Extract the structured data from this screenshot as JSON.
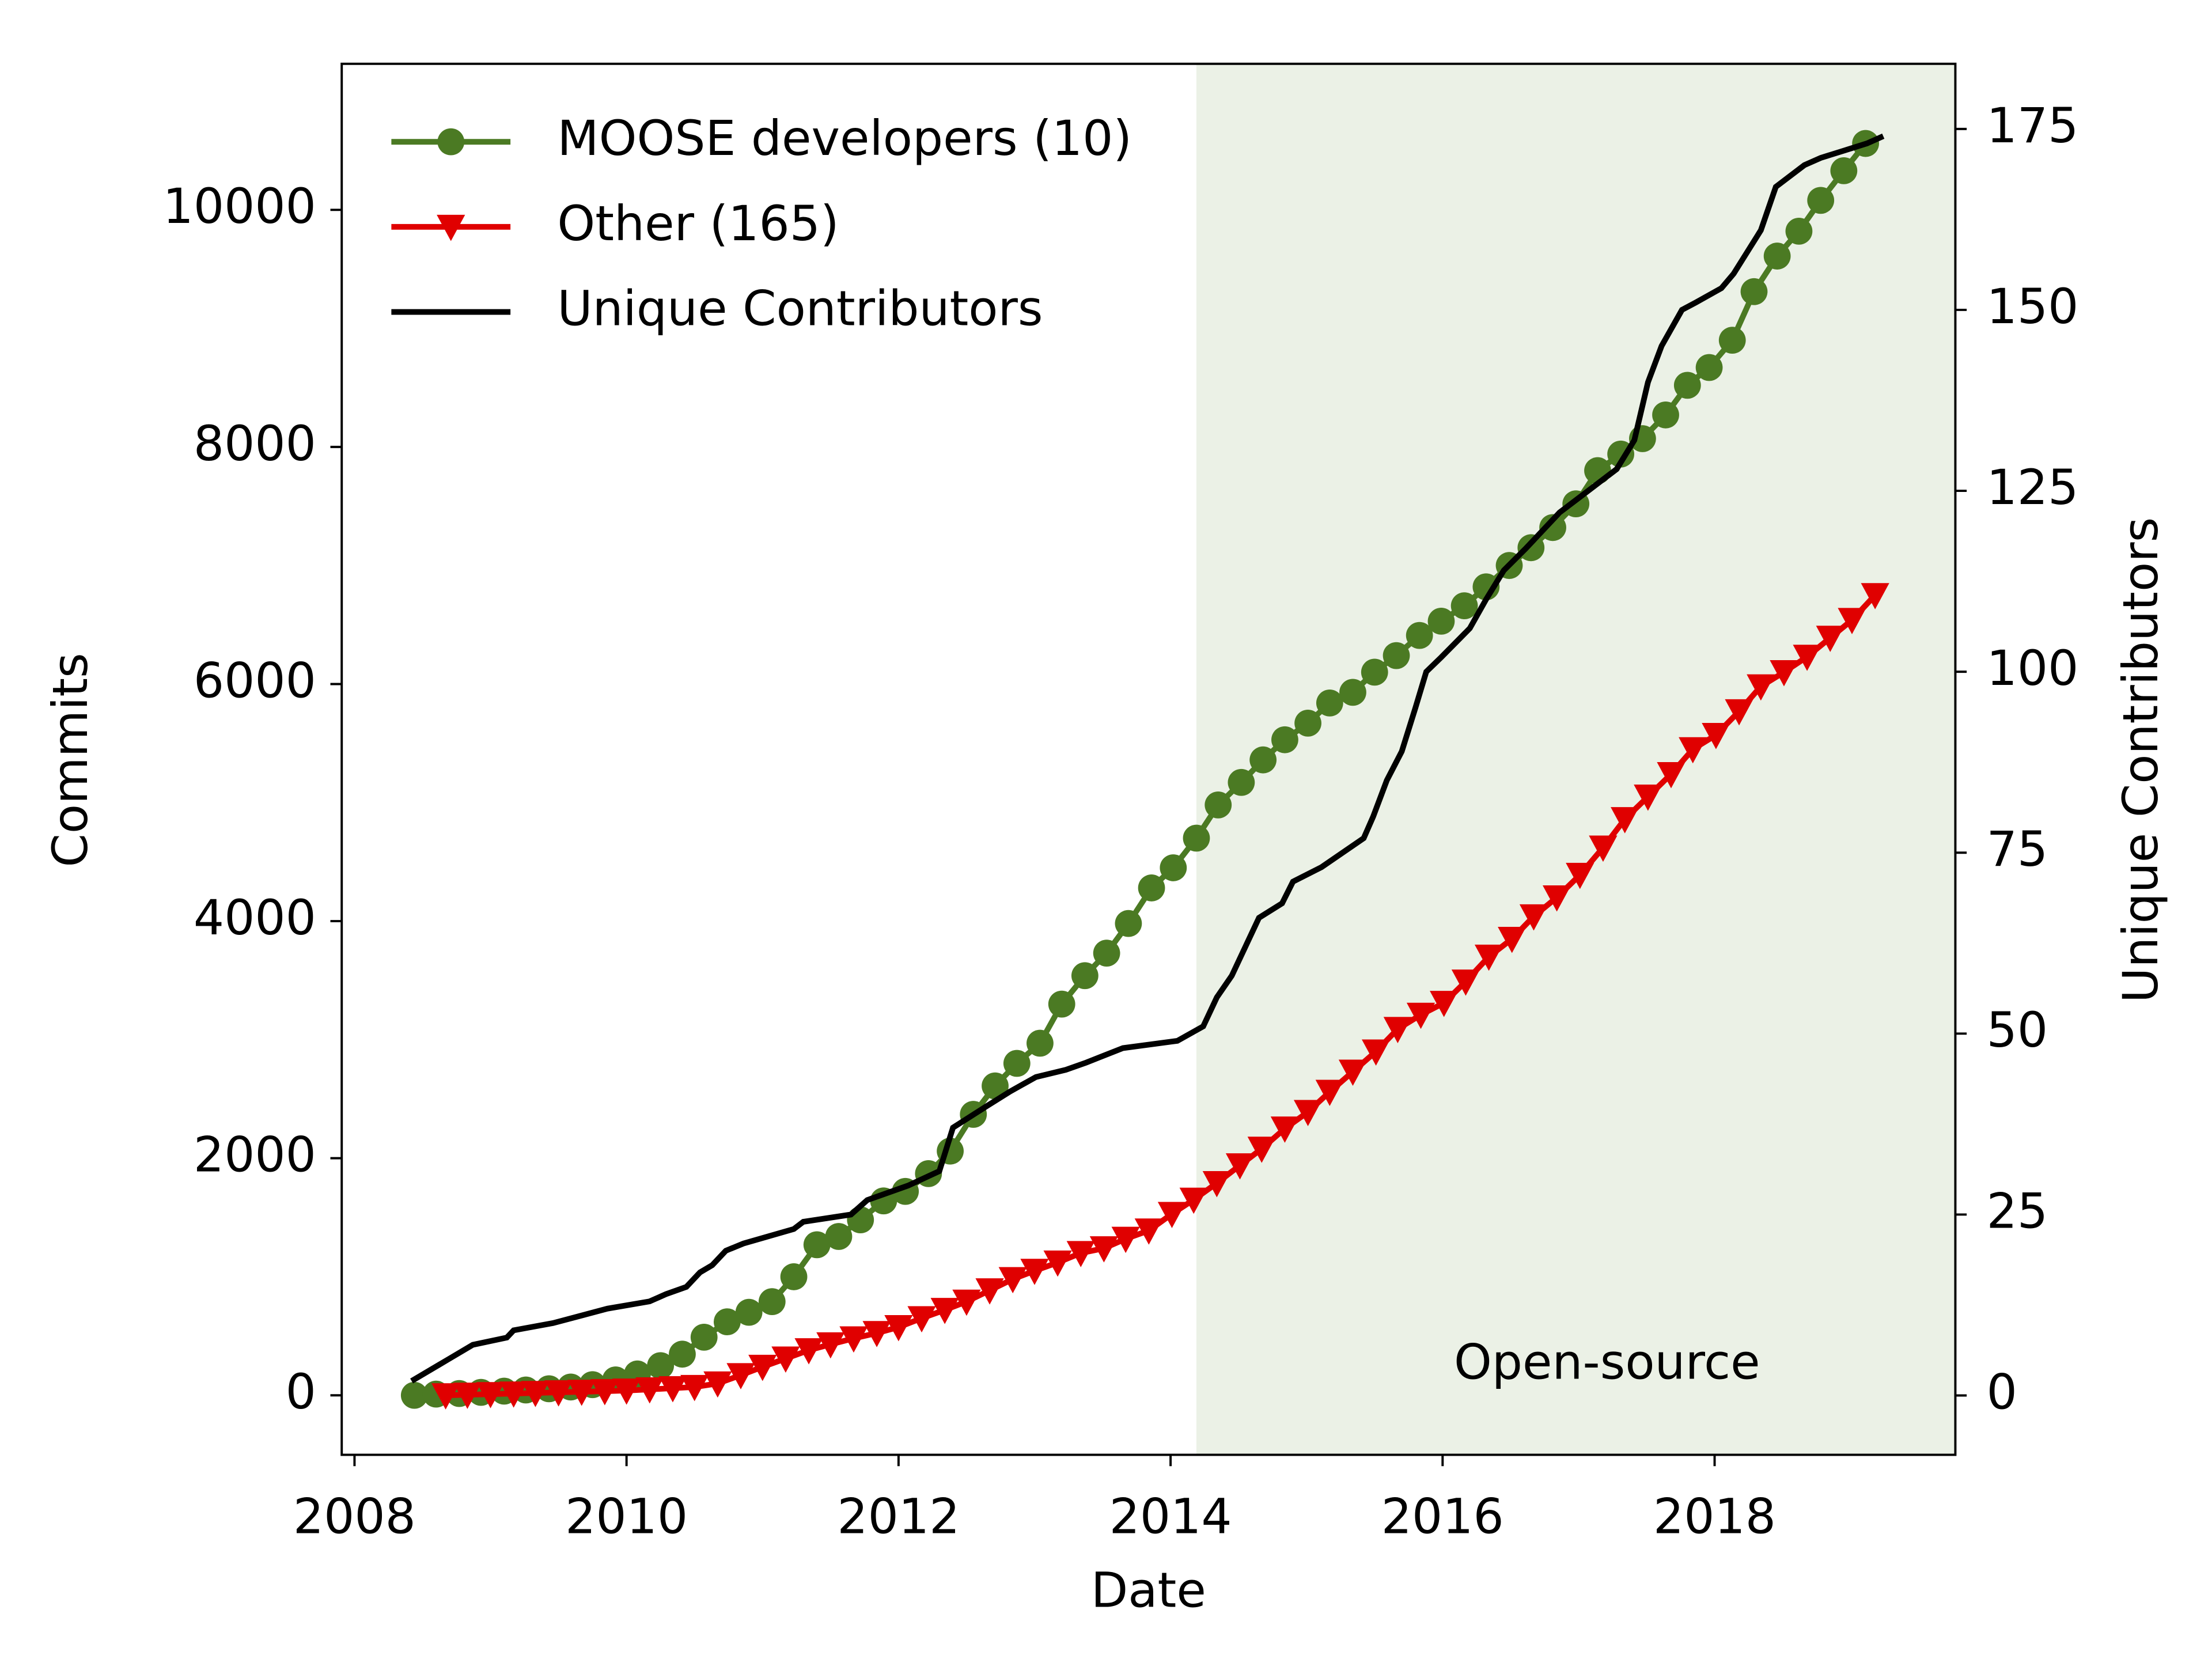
{
  "chart_data": {
    "type": "line",
    "x_label": "Date",
    "y_label": "Commits",
    "y2_label": "Unique Contributors",
    "xlim": [
      2007.906,
      2019.77
    ],
    "xticks": [
      2008,
      2010,
      2012,
      2014,
      2016,
      2018
    ],
    "ylim": [
      -502,
      11232
    ],
    "yticks": [
      0,
      2000,
      4000,
      6000,
      8000,
      10000
    ],
    "y2lim": [
      -8.2,
      184
    ],
    "y2ticks": [
      0,
      25,
      50,
      75,
      100,
      125,
      150,
      175
    ],
    "legend": "upper left",
    "shade": {
      "x0": 2014.19,
      "color": "#ebf1e6",
      "label": "Open-source"
    },
    "series": [
      {
        "name": "MOOSE developers (10)",
        "color": "#4b7a23",
        "marker": "circle",
        "x": [
          2008.44,
          2008.6,
          2008.77,
          2008.93,
          2009.1,
          2009.26,
          2009.43,
          2009.59,
          2009.75,
          2009.92,
          2010.08,
          2010.25,
          2010.41,
          2010.57,
          2010.74,
          2010.9,
          2011.07,
          2011.23,
          2011.4,
          2011.56,
          2011.72,
          2011.89,
          2012.05,
          2012.22,
          2012.38,
          2012.55,
          2012.71,
          2012.87,
          2013.04,
          2013.2,
          2013.37,
          2013.53,
          2013.69,
          2013.86,
          2014.02,
          2014.19,
          2014.35,
          2014.52,
          2014.68,
          2014.84,
          2015.01,
          2015.17,
          2015.34,
          2015.5,
          2015.66,
          2015.83,
          2015.99,
          2016.16,
          2016.32,
          2016.49,
          2016.65,
          2016.81,
          2016.98,
          2017.14,
          2017.31,
          2017.47,
          2017.64,
          2017.8,
          2017.96,
          2018.13,
          2018.29,
          2018.46,
          2018.62,
          2018.78,
          2018.95,
          2019.11
        ],
        "values": [
          0,
          10,
          15,
          25,
          35,
          45,
          55,
          70,
          90,
          130,
          180,
          250,
          347,
          490,
          620,
          700,
          790,
          1000,
          1270,
          1340,
          1480,
          1640,
          1720,
          1870,
          2060,
          2370,
          2610,
          2800,
          2970,
          3300,
          3540,
          3730,
          3980,
          4280,
          4450,
          4700,
          4980,
          5170,
          5360,
          5530,
          5670,
          5840,
          5930,
          6100,
          6240,
          6410,
          6530,
          6660,
          6820,
          7000,
          7150,
          7320,
          7520,
          7800,
          7940,
          8070,
          8270,
          8520,
          8670,
          8900,
          9310,
          9610,
          9820,
          10080,
          10330,
          10560
        ]
      },
      {
        "name": "Other (165)",
        "color": "#e00000",
        "marker": "triangle-down",
        "x": [
          2008.67,
          2008.83,
          2009.0,
          2009.17,
          2009.33,
          2009.5,
          2009.67,
          2009.84,
          2010.0,
          2010.17,
          2010.34,
          2010.5,
          2010.67,
          2010.84,
          2011.0,
          2011.17,
          2011.34,
          2011.5,
          2011.67,
          2011.84,
          2012.0,
          2012.17,
          2012.34,
          2012.5,
          2012.67,
          2012.84,
          2013.0,
          2013.17,
          2013.34,
          2013.51,
          2013.67,
          2013.84,
          2014.01,
          2014.17,
          2014.34,
          2014.51,
          2014.67,
          2014.84,
          2015.01,
          2015.17,
          2015.34,
          2015.51,
          2015.67,
          2015.84,
          2016.01,
          2016.17,
          2016.34,
          2016.51,
          2016.67,
          2016.84,
          2017.01,
          2017.18,
          2017.34,
          2017.51,
          2017.68,
          2017.84,
          2018.01,
          2018.18,
          2018.34,
          2018.51,
          2018.68,
          2018.85,
          2019.01,
          2019.18
        ],
        "values": [
          0,
          5,
          10,
          15,
          20,
          25,
          30,
          35,
          40,
          50,
          60,
          70,
          100,
          170,
          240,
          310,
          380,
          430,
          480,
          525,
          575,
          650,
          720,
          790,
          885,
          980,
          1050,
          1120,
          1200,
          1240,
          1320,
          1390,
          1530,
          1650,
          1790,
          1940,
          2080,
          2250,
          2390,
          2560,
          2730,
          2900,
          3090,
          3210,
          3310,
          3490,
          3700,
          3850,
          4040,
          4200,
          4390,
          4620,
          4860,
          5050,
          5240,
          5450,
          5570,
          5770,
          5980,
          6100,
          6230,
          6390,
          6540,
          6750
        ]
      },
      {
        "name": "Unique Contributors",
        "color": "#000000",
        "marker": "none",
        "axis": "y2",
        "x": [
          2008.42,
          2008.69,
          2008.87,
          2009.12,
          2009.17,
          2009.46,
          2009.86,
          2010.17,
          2010.29,
          2010.44,
          2010.54,
          2010.63,
          2010.73,
          2010.86,
          2011.23,
          2011.3,
          2011.65,
          2011.77,
          2012.07,
          2012.3,
          2012.4,
          2012.65,
          2012.82,
          2013.01,
          2013.23,
          2013.38,
          2013.65,
          2014.05,
          2014.24,
          2014.34,
          2014.45,
          2014.55,
          2014.65,
          2014.82,
          2014.9,
          2015.11,
          2015.42,
          2015.49,
          2015.59,
          2015.7,
          2015.8,
          2015.88,
          2015.99,
          2016.2,
          2016.32,
          2016.45,
          2016.61,
          2016.86,
          2017.07,
          2017.28,
          2017.41,
          2017.51,
          2017.61,
          2017.76,
          2017.86,
          2018.05,
          2018.14,
          2018.24,
          2018.34,
          2018.45,
          2018.66,
          2018.78,
          2018.95,
          2019.12,
          2019.24
        ],
        "values": [
          2,
          5,
          7,
          8,
          9,
          10,
          12,
          13,
          14,
          15,
          17,
          18,
          20,
          21,
          23,
          24,
          25,
          27,
          29,
          31,
          37,
          40,
          42,
          44,
          45,
          46,
          48,
          49,
          51,
          55,
          58,
          62,
          66,
          68,
          71,
          73,
          77,
          80,
          85,
          89,
          95,
          100,
          102,
          106,
          110,
          114,
          117,
          122,
          125,
          128,
          132,
          140,
          145,
          150,
          151,
          153,
          155,
          158,
          161,
          167,
          170,
          171,
          172,
          173,
          174
        ]
      }
    ]
  }
}
